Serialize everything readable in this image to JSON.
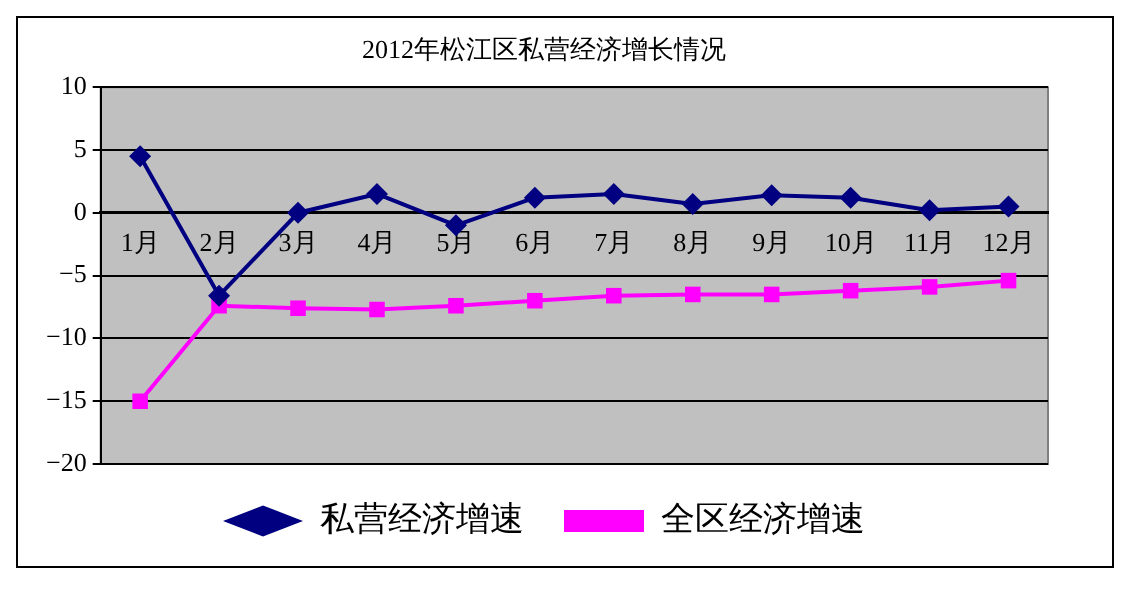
{
  "chart_data": {
    "type": "line",
    "title": "2012年松江区私营经济增长情况",
    "categories": [
      "1月",
      "2月",
      "3月",
      "4月",
      "5月",
      "6月",
      "7月",
      "8月",
      "9月",
      "10月",
      "11月",
      "12月"
    ],
    "series": [
      {
        "name": "私营经济增速",
        "color": "#000080",
        "marker": "diamond",
        "values": [
          4.5,
          -6.6,
          0,
          1.5,
          -1.0,
          1.2,
          1.5,
          0.7,
          1.4,
          1.2,
          0.2,
          0.5
        ]
      },
      {
        "name": "全区经济增速",
        "color": "#ff00ff",
        "marker": "square",
        "values": [
          -15,
          -7.4,
          -7.6,
          -7.7,
          -7.4,
          -7.0,
          -6.6,
          -6.5,
          -6.5,
          -6.2,
          -5.9,
          -5.4
        ]
      }
    ],
    "ylim": [
      -20,
      10
    ],
    "yticks": [
      -20,
      -15,
      -10,
      -5,
      0,
      5,
      10
    ],
    "grid": "y",
    "legend": "bottom",
    "line_style": "solid"
  }
}
